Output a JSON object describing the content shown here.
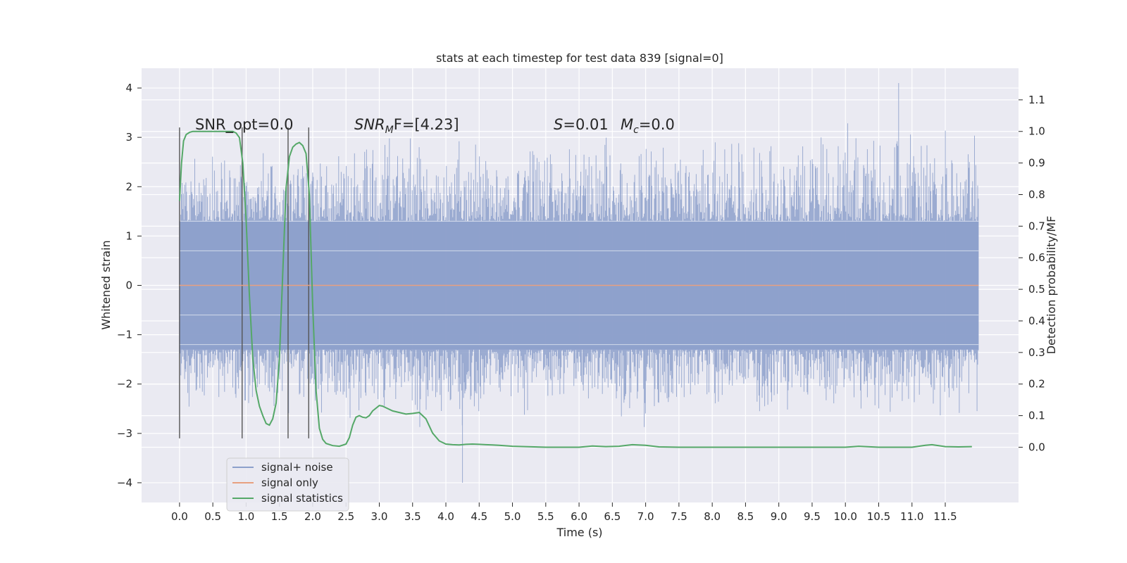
{
  "chart_data": {
    "type": "line",
    "title": "stats at each timestep for test data 839 [signal=0]",
    "xlabel": "Time (s)",
    "ylabel": "Whitened strain",
    "y2label": "Detection probability/MF",
    "xlim": [
      -0.57,
      12.6
    ],
    "ylim": [
      -4.4,
      4.4
    ],
    "y2lim": [
      -0.175,
      1.2
    ],
    "x_ticks": [
      "0.0",
      "0.5",
      "1.0",
      "1.5",
      "2.0",
      "2.5",
      "3.0",
      "3.5",
      "4.0",
      "4.5",
      "5.0",
      "5.5",
      "6.0",
      "6.5",
      "7.0",
      "7.5",
      "8.0",
      "8.5",
      "9.0",
      "9.5",
      "10.0",
      "10.5",
      "11.0",
      "11.5"
    ],
    "y_ticks": [
      "4",
      "3",
      "2",
      "1",
      "0",
      "−1",
      "−2",
      "−3",
      "−4"
    ],
    "y2_ticks": [
      "1.1",
      "1.0",
      "0.9",
      "0.8",
      "0.7",
      "0.6",
      "0.5",
      "0.4",
      "0.3",
      "0.2",
      "0.1",
      "0.0"
    ],
    "grid": true,
    "legend_position": "lower-left",
    "annotations": {
      "snr_opt": "SNR_opt=0.0",
      "snr_mf_pre": "SNR",
      "snr_mf_sub": "M",
      "snr_mf_post": "F=[4.23]",
      "s_label": "S",
      "s_value": "=0.01",
      "mc_label": "M",
      "mc_sub": "c",
      "mc_value": "=0.0"
    },
    "vertical_markers": [
      0.0,
      0.94,
      1.63,
      1.94
    ],
    "marker_range": [
      -3.1,
      3.2
    ],
    "series": [
      {
        "name": "signal+ noise",
        "axis": "left",
        "color": "#8da0cb",
        "x_range": [
          0.0,
          12.0
        ],
        "body_range": [
          -1.3,
          1.3
        ],
        "envelope_upper": [
          [
            0.0,
            2.9
          ],
          [
            1.0,
            2.7
          ],
          [
            2.0,
            3.0
          ],
          [
            3.0,
            3.2
          ],
          [
            4.0,
            3.1
          ],
          [
            5.0,
            3.0
          ],
          [
            6.0,
            3.2
          ],
          [
            7.0,
            3.0
          ],
          [
            8.0,
            3.1
          ],
          [
            9.0,
            3.2
          ],
          [
            10.0,
            3.3
          ],
          [
            11.0,
            3.2
          ],
          [
            12.0,
            3.2
          ]
        ],
        "envelope_lower": [
          [
            0.0,
            -2.6
          ],
          [
            1.0,
            -2.8
          ],
          [
            2.0,
            -2.7
          ],
          [
            3.0,
            -2.8
          ],
          [
            4.0,
            -3.2
          ],
          [
            5.0,
            -2.7
          ],
          [
            6.0,
            -2.7
          ],
          [
            7.0,
            -2.9
          ],
          [
            8.0,
            -2.6
          ],
          [
            9.0,
            -2.7
          ],
          [
            10.0,
            -2.7
          ],
          [
            11.0,
            -2.8
          ],
          [
            12.0,
            -2.6
          ]
        ],
        "max_point": [
          10.8,
          4.1
        ],
        "min_point": [
          4.25,
          -4.0
        ]
      },
      {
        "name": "signal only",
        "axis": "left",
        "color": "#e8a080",
        "x": [
          0.0,
          12.0
        ],
        "y": [
          0.0,
          0.0
        ]
      },
      {
        "name": "signal statistics",
        "axis": "right",
        "color": "#55a868",
        "x": [
          0.0,
          0.03,
          0.06,
          0.1,
          0.15,
          0.2,
          0.3,
          0.5,
          0.7,
          0.8,
          0.85,
          0.9,
          0.95,
          1.0,
          1.05,
          1.1,
          1.15,
          1.2,
          1.25,
          1.3,
          1.35,
          1.4,
          1.45,
          1.5,
          1.55,
          1.6,
          1.65,
          1.7,
          1.75,
          1.8,
          1.85,
          1.9,
          1.95,
          2.0,
          2.05,
          2.1,
          2.15,
          2.2,
          2.3,
          2.4,
          2.5,
          2.55,
          2.6,
          2.65,
          2.7,
          2.75,
          2.8,
          2.85,
          2.9,
          3.0,
          3.05,
          3.1,
          3.2,
          3.3,
          3.4,
          3.5,
          3.6,
          3.7,
          3.8,
          3.9,
          4.0,
          4.1,
          4.2,
          4.3,
          4.4,
          4.5,
          4.6,
          4.7,
          4.8,
          5.0,
          5.5,
          6.0,
          6.2,
          6.4,
          6.6,
          6.8,
          7.0,
          7.2,
          7.5,
          8.0,
          9.0,
          10.0,
          10.2,
          10.5,
          11.0,
          11.2,
          11.3,
          11.5,
          11.7,
          11.9
        ],
        "y": [
          0.78,
          0.9,
          0.97,
          0.99,
          0.997,
          1.0,
          1.0,
          1.0,
          1.0,
          1.0,
          0.995,
          0.98,
          0.9,
          0.72,
          0.48,
          0.28,
          0.18,
          0.13,
          0.1,
          0.075,
          0.07,
          0.09,
          0.14,
          0.28,
          0.55,
          0.82,
          0.92,
          0.95,
          0.96,
          0.965,
          0.955,
          0.93,
          0.8,
          0.45,
          0.18,
          0.06,
          0.025,
          0.012,
          0.005,
          0.003,
          0.01,
          0.03,
          0.07,
          0.095,
          0.1,
          0.095,
          0.093,
          0.1,
          0.115,
          0.132,
          0.13,
          0.125,
          0.115,
          0.11,
          0.105,
          0.107,
          0.11,
          0.09,
          0.045,
          0.02,
          0.01,
          0.008,
          0.007,
          0.009,
          0.01,
          0.009,
          0.008,
          0.007,
          0.006,
          0.003,
          0.0,
          0.0,
          0.004,
          0.002,
          0.003,
          0.008,
          0.006,
          0.001,
          0.0,
          0.0,
          0.0,
          0.0,
          0.003,
          0.0,
          0.0,
          0.006,
          0.008,
          0.002,
          0.001,
          0.002
        ]
      }
    ]
  }
}
